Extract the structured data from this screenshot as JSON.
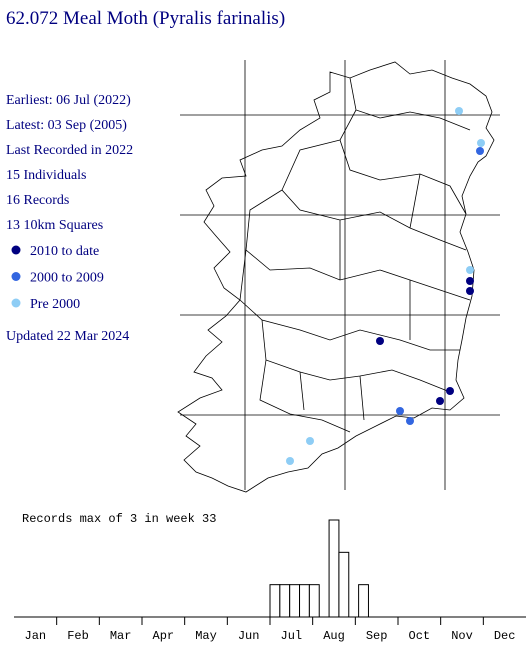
{
  "title": "62.072 Meal Moth (Pyralis farinalis)",
  "info": [
    "Earliest: 06 Jul (2022)",
    "Latest: 03 Sep (2005)",
    "Last Recorded in 2022",
    "15 Individuals",
    "16 Records",
    "13 10km Squares"
  ],
  "legend": [
    {
      "label": "2010 to date",
      "color": "#000080"
    },
    {
      "label": "2000 to 2009",
      "color": "#3366e0"
    },
    {
      "label": "Pre 2000",
      "color": "#8ecdf5"
    }
  ],
  "updated": "Updated 22 Mar 2024",
  "chart_data": {
    "type": "bar",
    "title": "Records max of 3 in week 33",
    "categories": [
      "Jan",
      "Feb",
      "Mar",
      "Apr",
      "May",
      "Jun",
      "Jul",
      "Aug",
      "Sep",
      "Oct",
      "Nov",
      "Dec"
    ],
    "x": [
      27,
      28,
      29,
      30,
      31,
      33,
      34,
      36
    ],
    "values": [
      1,
      1,
      1,
      1,
      1,
      3,
      2,
      1
    ],
    "xlim": [
      0,
      52
    ],
    "ylim": [
      0,
      3
    ]
  }
}
